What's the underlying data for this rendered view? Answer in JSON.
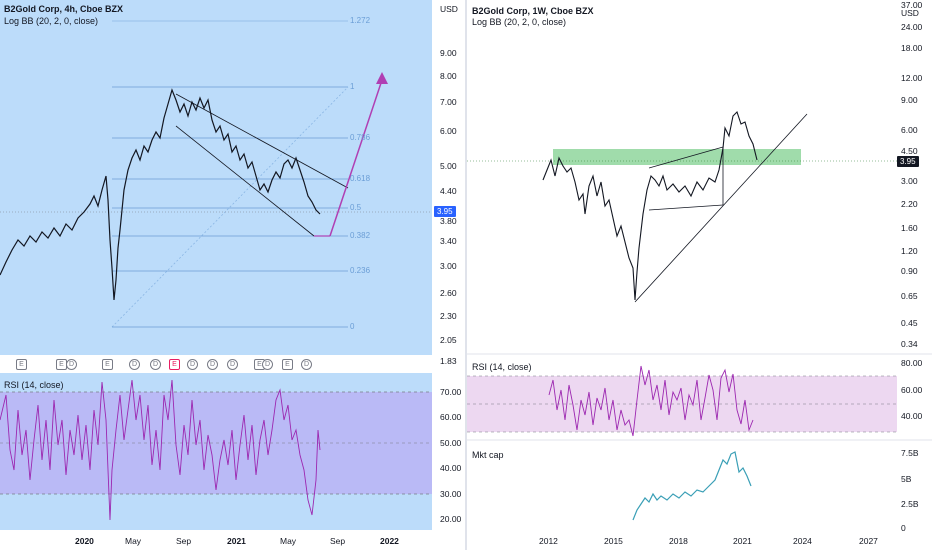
{
  "left": {
    "title": "B2Gold Corp, 4h, Cboe BZX",
    "bb": "Log BB (20, 2, 0, close)",
    "currency": "USD",
    "price_axis": [
      "9.00",
      "8.00",
      "7.00",
      "6.00",
      "5.00",
      "4.40",
      "3.80",
      "3.40",
      "3.00",
      "2.60",
      "2.30",
      "2.05",
      "1.83"
    ],
    "fib": [
      "1.272",
      "1",
      "0.786",
      "0.618",
      "0.5",
      "0.382",
      "0.236",
      "0"
    ],
    "price_tag": "3.95",
    "rsi_label": "RSI (14, close)",
    "rsi_axis": [
      "70.00",
      "60.00",
      "50.00",
      "40.00",
      "30.00",
      "20.00"
    ],
    "time_axis": [
      "2020",
      "May",
      "Sep",
      "2021",
      "May",
      "Sep",
      "2022"
    ],
    "events": [
      "E",
      "E",
      "D",
      "E",
      "D",
      "D",
      "E",
      "D",
      "D",
      "D",
      "E",
      "D",
      "E",
      "D"
    ]
  },
  "right": {
    "title": "B2Gold Corp, 1W, Cboe BZX",
    "bb": "Log BB (20, 2, 0, close)",
    "currency": "USD",
    "price_axis": [
      "37.00",
      "24.00",
      "18.00",
      "12.00",
      "9.00",
      "6.00",
      "4.50",
      "3.00",
      "2.20",
      "1.60",
      "1.20",
      "0.90",
      "0.65",
      "0.45",
      "0.34"
    ],
    "price_tag": "3.95",
    "rsi_label": "RSI (14, close)",
    "rsi_axis": [
      "80.00",
      "60.00",
      "40.00"
    ],
    "mcap_label": "Mkt cap",
    "mcap_axis": [
      "7.5B",
      "5B",
      "2.5B",
      "0"
    ],
    "time_axis": [
      "2012",
      "2015",
      "2018",
      "2021",
      "2024",
      "2027"
    ]
  },
  "colors": {
    "left_bg": "#bcdcfa",
    "rsi_fill": "#b89ff2",
    "rsi_line": "#9c27b0",
    "fib_line": "#6b9ed6",
    "arrow": "#b03fb3",
    "zone": "#8fd69c",
    "mcap_line": "#3a9fb6"
  }
}
